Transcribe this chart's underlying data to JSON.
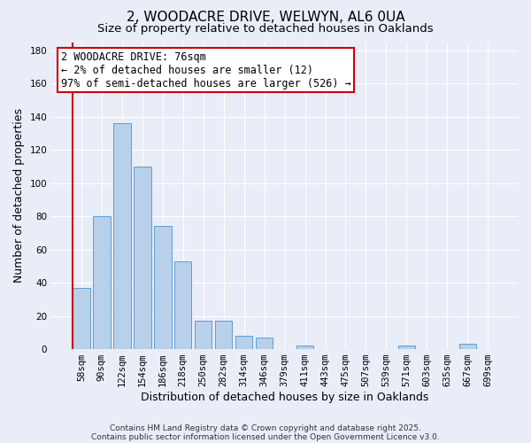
{
  "title": "2, WOODACRE DRIVE, WELWYN, AL6 0UA",
  "subtitle": "Size of property relative to detached houses in Oaklands",
  "xlabel": "Distribution of detached houses by size in Oaklands",
  "ylabel": "Number of detached properties",
  "bar_labels": [
    "58sqm",
    "90sqm",
    "122sqm",
    "154sqm",
    "186sqm",
    "218sqm",
    "250sqm",
    "282sqm",
    "314sqm",
    "346sqm",
    "379sqm",
    "411sqm",
    "443sqm",
    "475sqm",
    "507sqm",
    "539sqm",
    "571sqm",
    "603sqm",
    "635sqm",
    "667sqm",
    "699sqm"
  ],
  "bar_values": [
    37,
    80,
    136,
    110,
    74,
    53,
    17,
    17,
    8,
    7,
    0,
    2,
    0,
    0,
    0,
    0,
    2,
    0,
    0,
    3,
    0
  ],
  "bar_color": "#b8d0ea",
  "bar_edge_color": "#5a9fd4",
  "vline_color": "#cc0000",
  "annotation_text": "2 WOODACRE DRIVE: 76sqm\n← 2% of detached houses are smaller (12)\n97% of semi-detached houses are larger (526) →",
  "annotation_box_edgecolor": "#cc0000",
  "annotation_box_facecolor": "#ffffff",
  "ylim": [
    0,
    185
  ],
  "yticks": [
    0,
    20,
    40,
    60,
    80,
    100,
    120,
    140,
    160,
    180
  ],
  "footer_line1": "Contains HM Land Registry data © Crown copyright and database right 2025.",
  "footer_line2": "Contains public sector information licensed under the Open Government Licence v3.0.",
  "background_color": "#e8edf8",
  "grid_color": "#ffffff",
  "title_fontsize": 11,
  "subtitle_fontsize": 9.5,
  "axis_label_fontsize": 9,
  "tick_fontsize": 7.5,
  "annotation_fontsize": 8.5,
  "footer_fontsize": 6.5
}
